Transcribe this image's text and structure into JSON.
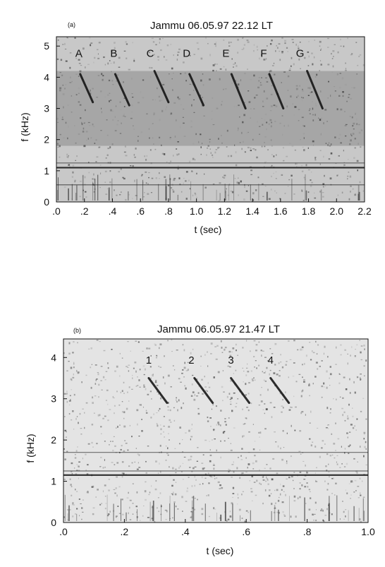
{
  "chart_data": [
    {
      "type": "heatmap",
      "panel_label": "(a)",
      "title": "Jammu 06.05.97 22.12 LT",
      "xlabel": "t (sec)",
      "ylabel": "f (kHz)",
      "xlim": [
        0,
        2.2
      ],
      "ylim": [
        0,
        5.3
      ],
      "x_ticks": [
        {
          "v": 0,
          "l": ".0"
        },
        {
          "v": 0.2,
          "l": ".2"
        },
        {
          "v": 0.4,
          "l": ".4"
        },
        {
          "v": 0.6,
          "l": ".6"
        },
        {
          "v": 0.8,
          "l": ".8"
        },
        {
          "v": 1.0,
          "l": "1.0"
        },
        {
          "v": 1.2,
          "l": "1.2"
        },
        {
          "v": 1.4,
          "l": "1.4"
        },
        {
          "v": 1.6,
          "l": "1.6"
        },
        {
          "v": 1.8,
          "l": "1.8"
        },
        {
          "v": 2.0,
          "l": "2.0"
        },
        {
          "v": 2.2,
          "l": "2.2"
        }
      ],
      "y_ticks": [
        {
          "v": 0,
          "l": "0"
        },
        {
          "v": 1,
          "l": "1"
        },
        {
          "v": 2,
          "l": "2"
        },
        {
          "v": 3,
          "l": "3"
        },
        {
          "v": 4,
          "l": "4"
        },
        {
          "v": 5,
          "l": "5"
        }
      ],
      "event_markers": [
        {
          "label": "A",
          "t": 0.16
        },
        {
          "label": "B",
          "t": 0.41
        },
        {
          "label": "C",
          "t": 0.67
        },
        {
          "label": "D",
          "t": 0.93
        },
        {
          "label": "E",
          "t": 1.21
        },
        {
          "label": "F",
          "t": 1.48
        },
        {
          "label": "G",
          "t": 1.74
        }
      ],
      "marker_freq": 4.65,
      "hiss_band_khz": [
        1.8,
        4.2
      ],
      "horizontal_lines_khz": [
        1.1,
        1.25,
        0.55
      ],
      "whistlers": [
        {
          "t0": 0.17,
          "t1": 0.26,
          "f0": 4.1,
          "f1": 3.2
        },
        {
          "t0": 0.42,
          "t1": 0.52,
          "f0": 4.1,
          "f1": 3.1
        },
        {
          "t0": 0.7,
          "t1": 0.8,
          "f0": 4.2,
          "f1": 3.2
        },
        {
          "t0": 0.95,
          "t1": 1.05,
          "f0": 4.1,
          "f1": 3.1
        },
        {
          "t0": 1.25,
          "t1": 1.35,
          "f0": 4.1,
          "f1": 3.0
        },
        {
          "t0": 1.52,
          "t1": 1.62,
          "f0": 4.1,
          "f1": 3.0
        },
        {
          "t0": 1.79,
          "t1": 1.9,
          "f0": 4.2,
          "f1": 3.0
        }
      ]
    },
    {
      "type": "heatmap",
      "panel_label": "(b)",
      "title": "Jammu 06.05.97 21.47 LT",
      "xlabel": "t (sec)",
      "ylabel": "f (kHz)",
      "xlim": [
        0,
        1.0
      ],
      "ylim": [
        0,
        4.45
      ],
      "x_ticks": [
        {
          "v": 0,
          "l": ".0"
        },
        {
          "v": 0.2,
          "l": ".2"
        },
        {
          "v": 0.4,
          "l": ".4"
        },
        {
          "v": 0.6,
          "l": ".6"
        },
        {
          "v": 0.8,
          "l": ".8"
        },
        {
          "v": 1.0,
          "l": "1.0"
        }
      ],
      "y_ticks": [
        {
          "v": 0,
          "l": "0"
        },
        {
          "v": 1,
          "l": "1"
        },
        {
          "v": 2,
          "l": "2"
        },
        {
          "v": 3,
          "l": "3"
        },
        {
          "v": 4,
          "l": "4"
        }
      ],
      "event_markers": [
        {
          "label": "1",
          "t": 0.28
        },
        {
          "label": "2",
          "t": 0.42
        },
        {
          "label": "3",
          "t": 0.55
        },
        {
          "label": "4",
          "t": 0.68
        }
      ],
      "marker_freq": 3.85,
      "horizontal_lines_khz": [
        1.15,
        1.25,
        1.7
      ],
      "whistlers": [
        {
          "t0": 0.28,
          "t1": 0.34,
          "f0": 3.5,
          "f1": 2.9
        },
        {
          "t0": 0.43,
          "t1": 0.49,
          "f0": 3.5,
          "f1": 2.9
        },
        {
          "t0": 0.55,
          "t1": 0.61,
          "f0": 3.5,
          "f1": 2.9
        },
        {
          "t0": 0.68,
          "t1": 0.74,
          "f0": 3.5,
          "f1": 2.9
        }
      ]
    }
  ]
}
